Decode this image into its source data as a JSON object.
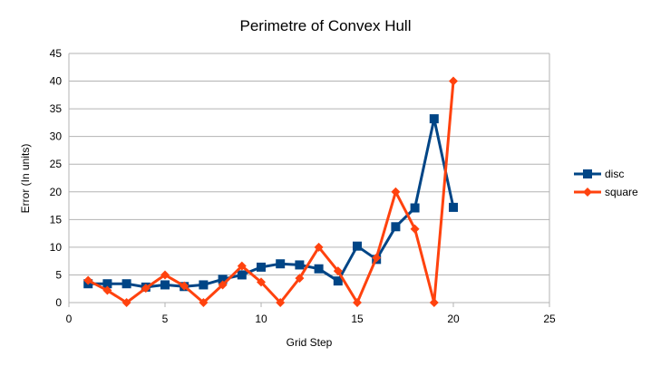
{
  "chart_data": {
    "type": "scatter",
    "title": "Perimetre of Convex Hull",
    "xlabel": "Grid Step",
    "ylabel": "Error (In units)",
    "xlim": [
      0,
      25
    ],
    "ylim": [
      0,
      45
    ],
    "xticks": [
      0,
      5,
      10,
      15,
      20,
      25
    ],
    "yticks": [
      0,
      5,
      10,
      15,
      20,
      25,
      30,
      35,
      40,
      45
    ],
    "grid": "horizontal",
    "legend": "right",
    "series": [
      {
        "name": "disc",
        "color": "#004586",
        "marker": "square",
        "x": [
          1,
          2,
          3,
          4,
          5,
          6,
          7,
          8,
          9,
          10,
          11,
          12,
          13,
          14,
          15,
          16,
          17,
          18,
          19,
          20
        ],
        "y": [
          3.4,
          3.4,
          3.4,
          2.8,
          3.2,
          2.9,
          3.2,
          4.2,
          5.0,
          6.4,
          7.0,
          6.8,
          6.1,
          3.9,
          10.2,
          7.8,
          13.7,
          17.1,
          33.2,
          17.2
        ]
      },
      {
        "name": "square",
        "color": "#ff420e",
        "marker": "diamond",
        "x": [
          1,
          2,
          3,
          4,
          5,
          6,
          7,
          8,
          9,
          10,
          11,
          12,
          13,
          14,
          15,
          16,
          17,
          18,
          19,
          20
        ],
        "y": [
          4.0,
          2.2,
          0.0,
          2.6,
          5.0,
          3.0,
          0.0,
          3.2,
          6.6,
          3.7,
          0.0,
          4.4,
          10.0,
          5.7,
          0.0,
          8.1,
          20.0,
          13.3,
          0.0,
          40.0
        ]
      }
    ]
  }
}
